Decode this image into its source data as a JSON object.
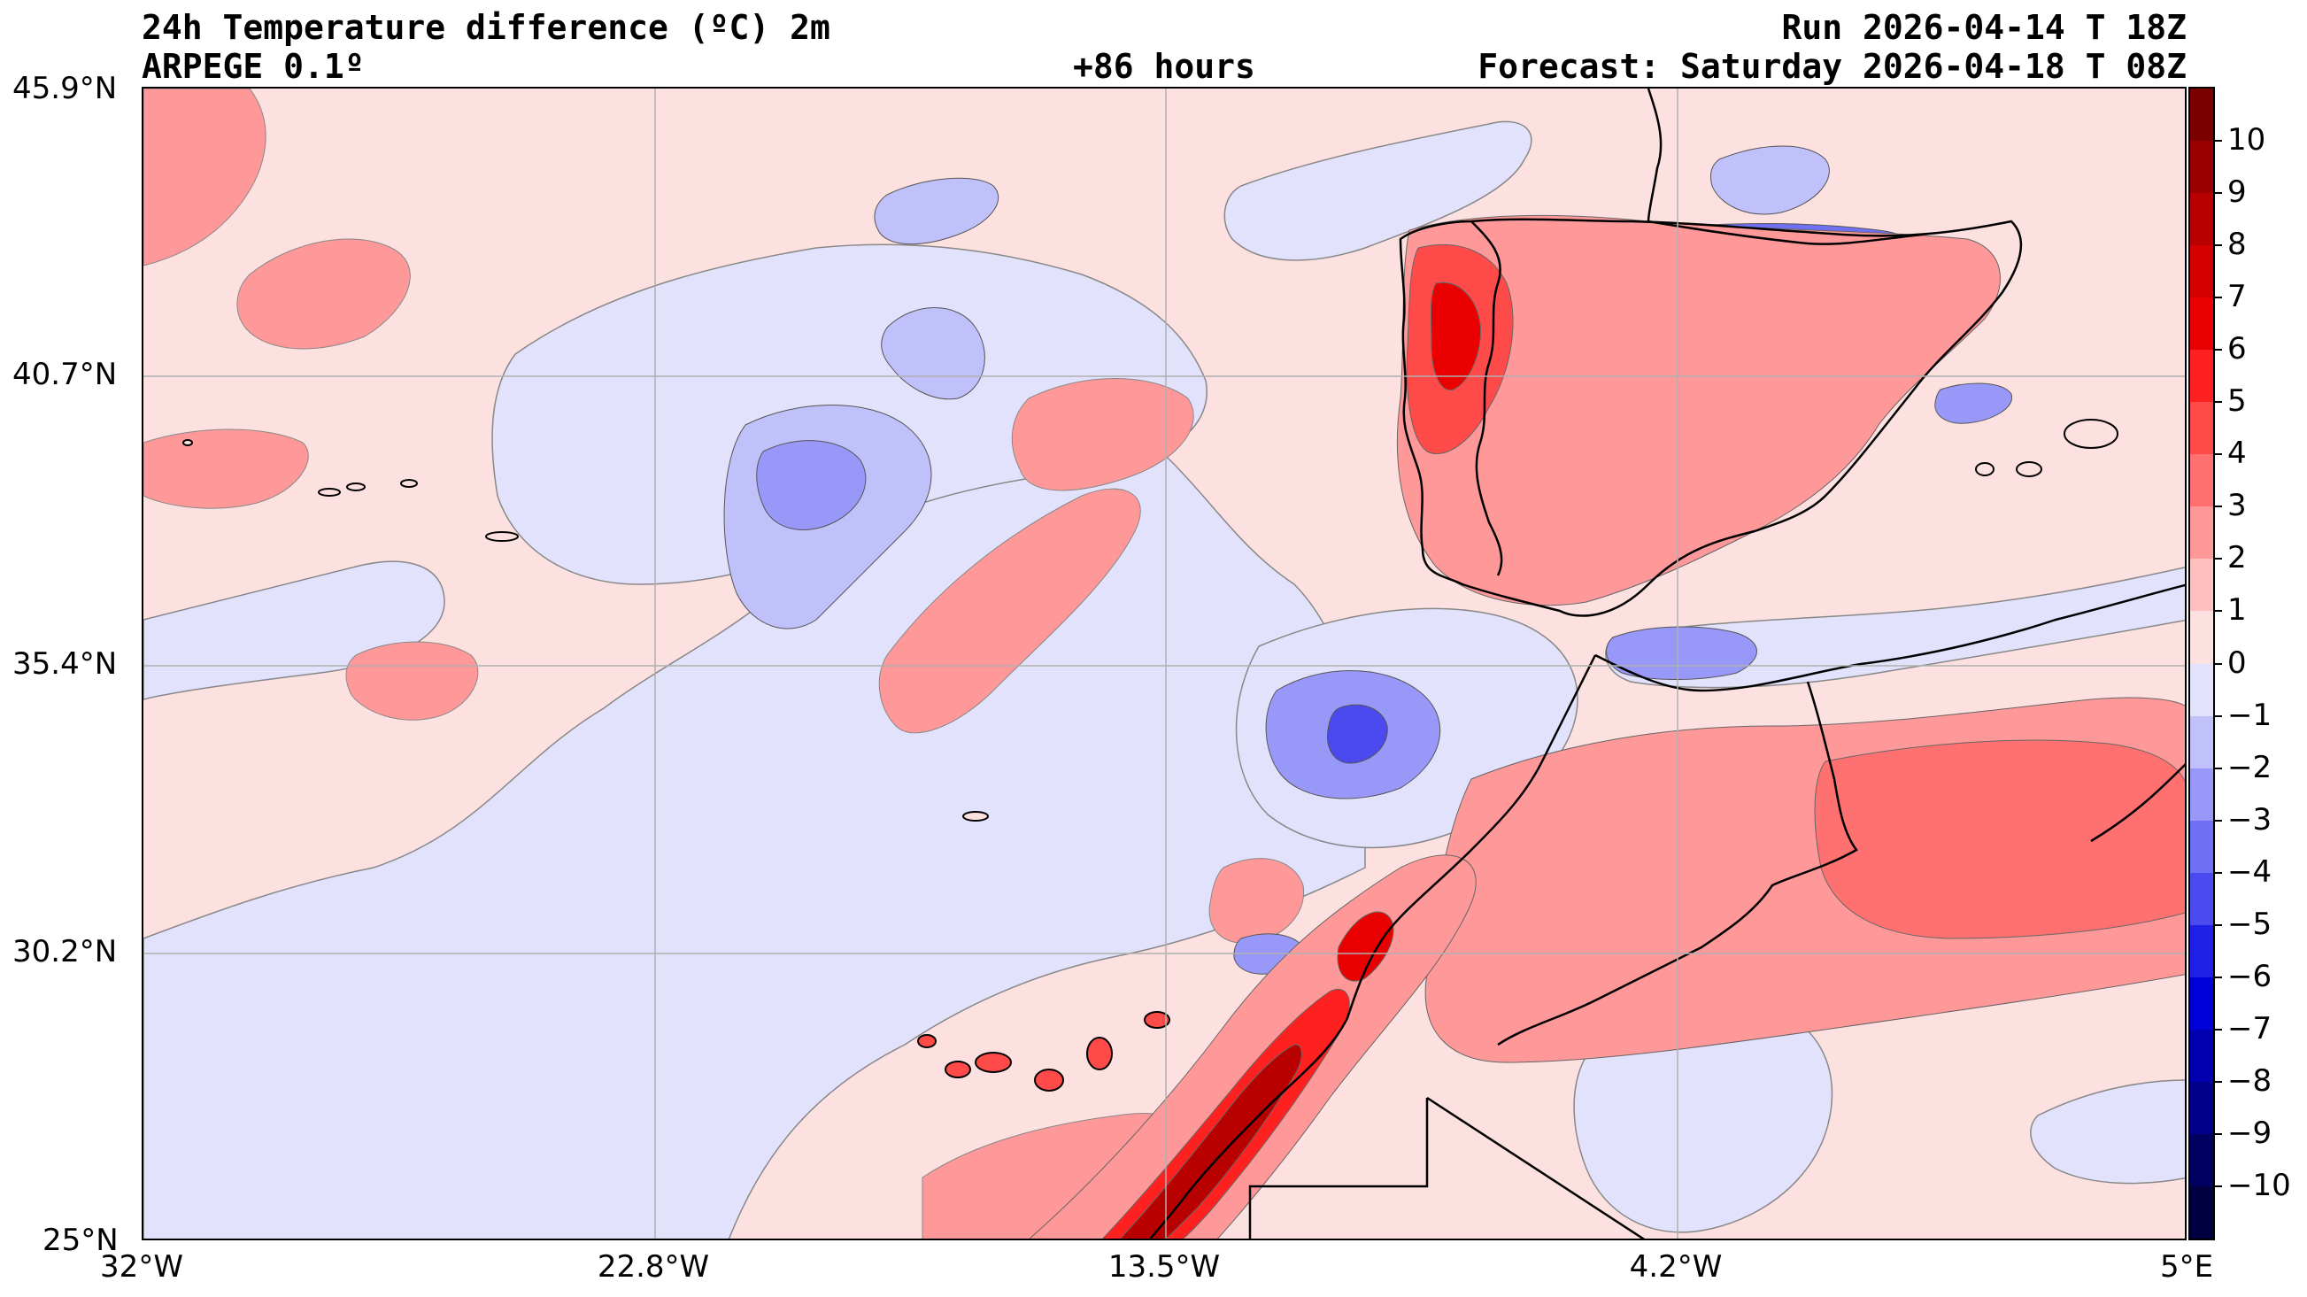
{
  "header": {
    "title": "24h Temperature difference (ºC) 2m",
    "model": "ARPEGE 0.1º",
    "lead_time": "+86 hours",
    "run": "Run 2026-04-14 T 18Z",
    "forecast": "Forecast: Saturday 2026-04-18 T 08Z"
  },
  "axes": {
    "lat_labels": [
      "45.9°N",
      "40.7°N",
      "35.4°N",
      "30.2°N",
      "25°N"
    ],
    "lon_labels": [
      "32°W",
      "22.8°W",
      "13.5°W",
      "4.2°W",
      "5°E"
    ]
  },
  "colorbar": {
    "tick_labels": [
      "10",
      "9",
      "8",
      "7",
      "6",
      "5",
      "4",
      "3",
      "2",
      "1",
      "0",
      "−1",
      "−2",
      "−3",
      "−4",
      "−5",
      "−6",
      "−7",
      "−8",
      "−9",
      "−10"
    ],
    "colors": [
      "#7a0000",
      "#9a0000",
      "#b80000",
      "#d40000",
      "#ea0000",
      "#ff2020",
      "#ff4a4a",
      "#ff7070",
      "#ff9898",
      "#ffc0c0",
      "#fde0e0",
      "#e2e2fc",
      "#c0c0fa",
      "#9898f8",
      "#7070f4",
      "#4a4aee",
      "#2020e8",
      "#0000d8",
      "#0000b0",
      "#00008a",
      "#000060",
      "#000040"
    ],
    "range": [
      -11,
      11
    ]
  },
  "map": {
    "background_color": "#fde0e0",
    "cool_color": "#e2e2fc",
    "warm_color_1": "#ffc0c0",
    "warm_color_2": "#ff9898",
    "warm_color_3": "#ff4a4a",
    "warm_color_4": "#d40000",
    "cold_color_1": "#c0c0fa",
    "cold_color_2": "#7070f4",
    "cold_color_3": "#2020e8",
    "coast_color": "#000000",
    "grid_color": "#b0b0b0"
  }
}
